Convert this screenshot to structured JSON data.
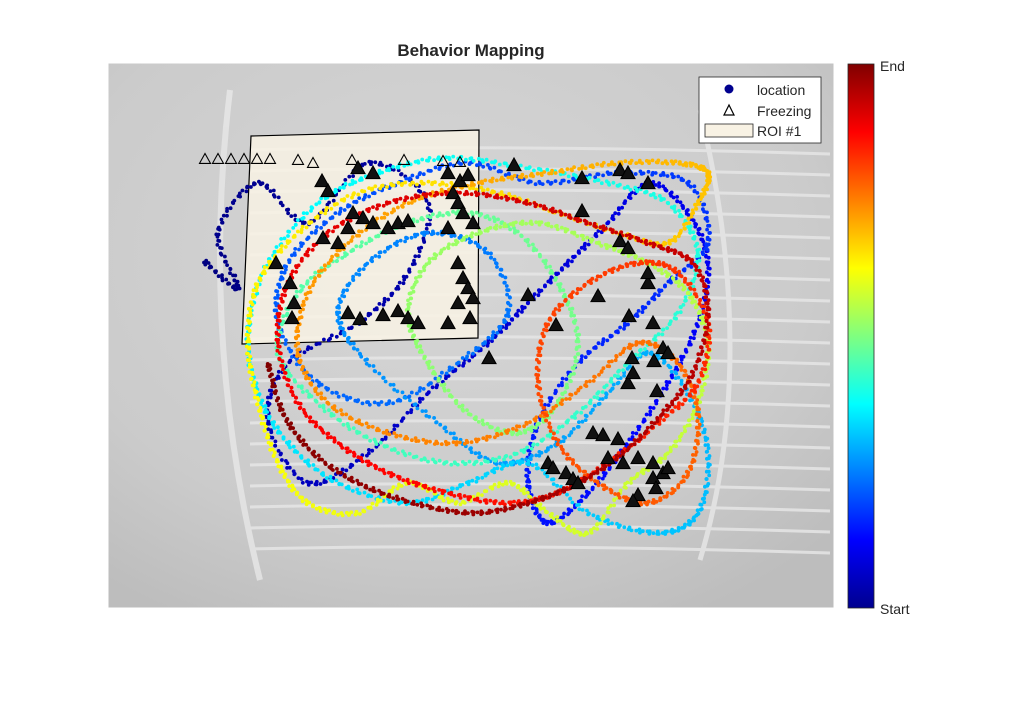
{
  "chart_data": {
    "type": "scatter",
    "title": "Behavior Mapping",
    "xlabel": "",
    "ylabel": "",
    "xlim": [
      0,
      726
    ],
    "ylim": [
      0,
      545
    ],
    "y_direction": "down",
    "grid": false,
    "legend": {
      "placement": "top-right",
      "entries": [
        {
          "label": "location",
          "marker": "filled-circle",
          "color": "#00008f"
        },
        {
          "label": "Freezing",
          "marker": "open-triangle",
          "color": "#000000"
        },
        {
          "label": "ROI #1",
          "marker": "patch",
          "color": "#f8f2e4"
        }
      ]
    },
    "colorbar": {
      "colormap": "jet",
      "top_label": "End",
      "bottom_label": "Start"
    },
    "roi": {
      "name": "ROI #1",
      "fill": "#f8f2e4",
      "vertices": [
        [
          143,
          73
        ],
        [
          371,
          67
        ],
        [
          370,
          275
        ],
        [
          134,
          281
        ]
      ]
    },
    "location_path_anchors": [
      [
        96,
        198
      ],
      [
        130,
        225
      ],
      [
        110,
        170
      ],
      [
        150,
        120
      ],
      [
        200,
        160
      ],
      [
        260,
        100
      ],
      [
        320,
        140
      ],
      [
        300,
        210
      ],
      [
        250,
        260
      ],
      [
        180,
        300
      ],
      [
        160,
        360
      ],
      [
        200,
        420
      ],
      [
        260,
        390
      ],
      [
        320,
        330
      ],
      [
        380,
        280
      ],
      [
        420,
        240
      ],
      [
        460,
        200
      ],
      [
        500,
        160
      ],
      [
        540,
        120
      ],
      [
        580,
        150
      ],
      [
        600,
        200
      ],
      [
        590,
        260
      ],
      [
        560,
        320
      ],
      [
        520,
        380
      ],
      [
        480,
        430
      ],
      [
        440,
        460
      ],
      [
        420,
        420
      ],
      [
        430,
        360
      ],
      [
        470,
        300
      ],
      [
        520,
        260
      ],
      [
        560,
        220
      ],
      [
        600,
        180
      ],
      [
        580,
        120
      ],
      [
        510,
        110
      ],
      [
        430,
        120
      ],
      [
        360,
        100
      ],
      [
        290,
        120
      ],
      [
        230,
        150
      ],
      [
        180,
        200
      ],
      [
        170,
        260
      ],
      [
        210,
        320
      ],
      [
        280,
        340
      ],
      [
        350,
        300
      ],
      [
        400,
        250
      ],
      [
        380,
        190
      ],
      [
        320,
        170
      ],
      [
        260,
        200
      ],
      [
        230,
        250
      ],
      [
        260,
        300
      ],
      [
        330,
        360
      ],
      [
        390,
        400
      ],
      [
        450,
        380
      ],
      [
        500,
        330
      ],
      [
        540,
        290
      ],
      [
        580,
        330
      ],
      [
        600,
        390
      ],
      [
        590,
        450
      ],
      [
        550,
        470
      ],
      [
        480,
        450
      ],
      [
        420,
        400
      ],
      [
        360,
        420
      ],
      [
        300,
        440
      ],
      [
        230,
        420
      ],
      [
        180,
        380
      ],
      [
        150,
        330
      ],
      [
        140,
        270
      ],
      [
        160,
        200
      ],
      [
        210,
        140
      ],
      [
        270,
        110
      ],
      [
        340,
        95
      ],
      [
        420,
        105
      ],
      [
        500,
        120
      ],
      [
        560,
        140
      ],
      [
        590,
        190
      ],
      [
        570,
        250
      ],
      [
        520,
        300
      ],
      [
        470,
        350
      ],
      [
        410,
        390
      ],
      [
        340,
        400
      ],
      [
        270,
        380
      ],
      [
        210,
        340
      ],
      [
        170,
        290
      ],
      [
        190,
        230
      ],
      [
        240,
        190
      ],
      [
        300,
        160
      ],
      [
        360,
        150
      ],
      [
        410,
        170
      ],
      [
        450,
        220
      ],
      [
        470,
        280
      ],
      [
        450,
        340
      ],
      [
        410,
        370
      ],
      [
        360,
        350
      ],
      [
        320,
        300
      ],
      [
        300,
        250
      ],
      [
        320,
        200
      ],
      [
        370,
        170
      ],
      [
        430,
        160
      ],
      [
        490,
        180
      ],
      [
        540,
        200
      ],
      [
        580,
        230
      ],
      [
        600,
        280
      ],
      [
        590,
        340
      ],
      [
        560,
        390
      ],
      [
        520,
        420
      ],
      [
        480,
        470
      ],
      [
        440,
        450
      ],
      [
        400,
        420
      ],
      [
        350,
        440
      ],
      [
        300,
        420
      ],
      [
        250,
        450
      ],
      [
        200,
        440
      ],
      [
        170,
        400
      ],
      [
        150,
        340
      ],
      [
        140,
        280
      ],
      [
        150,
        220
      ],
      [
        190,
        170
      ],
      [
        250,
        130
      ],
      [
        320,
        120
      ],
      [
        390,
        130
      ],
      [
        450,
        150
      ],
      [
        510,
        170
      ],
      [
        560,
        180
      ],
      [
        590,
        140
      ],
      [
        600,
        110
      ],
      [
        570,
        100
      ],
      [
        510,
        100
      ],
      [
        440,
        110
      ],
      [
        370,
        120
      ],
      [
        300,
        140
      ],
      [
        240,
        180
      ],
      [
        200,
        230
      ],
      [
        190,
        290
      ],
      [
        220,
        340
      ],
      [
        280,
        370
      ],
      [
        350,
        380
      ],
      [
        420,
        360
      ],
      [
        480,
        320
      ],
      [
        530,
        280
      ],
      [
        570,
        300
      ],
      [
        590,
        350
      ],
      [
        580,
        410
      ],
      [
        540,
        440
      ],
      [
        490,
        420
      ],
      [
        450,
        380
      ],
      [
        430,
        320
      ],
      [
        440,
        260
      ],
      [
        480,
        220
      ],
      [
        530,
        200
      ],
      [
        570,
        210
      ],
      [
        600,
        260
      ],
      [
        590,
        320
      ],
      [
        550,
        360
      ],
      [
        500,
        400
      ],
      [
        450,
        430
      ],
      [
        400,
        440
      ],
      [
        340,
        430
      ],
      [
        280,
        410
      ],
      [
        230,
        380
      ],
      [
        190,
        340
      ],
      [
        170,
        280
      ],
      [
        180,
        220
      ],
      [
        220,
        170
      ],
      [
        280,
        140
      ],
      [
        350,
        130
      ],
      [
        420,
        140
      ],
      [
        480,
        160
      ],
      [
        540,
        180
      ],
      [
        585,
        200
      ],
      [
        600,
        250
      ],
      [
        585,
        310
      ],
      [
        555,
        350
      ],
      [
        515,
        390
      ],
      [
        470,
        420
      ],
      [
        420,
        440
      ],
      [
        365,
        450
      ],
      [
        305,
        440
      ],
      [
        250,
        420
      ],
      [
        205,
        390
      ],
      [
        175,
        350
      ],
      [
        160,
        300
      ]
    ],
    "freezing_points": [
      [
        97,
        96
      ],
      [
        110,
        96
      ],
      [
        123,
        96
      ],
      [
        136,
        96
      ],
      [
        149,
        96
      ],
      [
        162,
        96
      ],
      [
        190,
        97
      ],
      [
        244,
        97
      ],
      [
        296,
        97
      ],
      [
        335,
        98
      ],
      [
        352,
        99
      ],
      [
        406,
        102
      ],
      [
        205,
        100
      ],
      [
        250,
        105
      ],
      [
        265,
        110
      ],
      [
        214,
        118
      ],
      [
        220,
        128
      ],
      [
        340,
        110
      ],
      [
        352,
        118
      ],
      [
        360,
        112
      ],
      [
        345,
        130
      ],
      [
        350,
        140
      ],
      [
        355,
        150
      ],
      [
        365,
        160
      ],
      [
        340,
        165
      ],
      [
        245,
        150
      ],
      [
        255,
        155
      ],
      [
        265,
        160
      ],
      [
        280,
        165
      ],
      [
        290,
        160
      ],
      [
        300,
        158
      ],
      [
        230,
        180
      ],
      [
        215,
        175
      ],
      [
        240,
        165
      ],
      [
        350,
        200
      ],
      [
        355,
        215
      ],
      [
        360,
        225
      ],
      [
        365,
        235
      ],
      [
        350,
        240
      ],
      [
        168,
        200
      ],
      [
        182,
        220
      ],
      [
        186,
        240
      ],
      [
        184,
        255
      ],
      [
        240,
        250
      ],
      [
        252,
        256
      ],
      [
        275,
        252
      ],
      [
        290,
        248
      ],
      [
        300,
        255
      ],
      [
        310,
        260
      ],
      [
        340,
        260
      ],
      [
        362,
        255
      ],
      [
        420,
        232
      ],
      [
        490,
        233
      ],
      [
        474,
        115
      ],
      [
        512,
        107
      ],
      [
        520,
        110
      ],
      [
        540,
        120
      ],
      [
        474,
        148
      ],
      [
        512,
        178
      ],
      [
        520,
        185
      ],
      [
        540,
        220
      ],
      [
        545,
        260
      ],
      [
        555,
        285
      ],
      [
        560,
        290
      ],
      [
        546,
        298
      ],
      [
        524,
        295
      ],
      [
        520,
        320
      ],
      [
        525,
        310
      ],
      [
        549,
        328
      ],
      [
        485,
        370
      ],
      [
        495,
        372
      ],
      [
        510,
        376
      ],
      [
        500,
        395
      ],
      [
        515,
        400
      ],
      [
        530,
        395
      ],
      [
        545,
        400
      ],
      [
        555,
        410
      ],
      [
        560,
        405
      ],
      [
        545,
        415
      ],
      [
        548,
        425
      ],
      [
        530,
        432
      ],
      [
        525,
        438
      ],
      [
        440,
        400
      ],
      [
        445,
        405
      ],
      [
        458,
        410
      ],
      [
        465,
        416
      ],
      [
        470,
        420
      ],
      [
        381,
        295
      ],
      [
        448,
        262
      ],
      [
        521,
        253
      ],
      [
        540,
        210
      ]
    ]
  }
}
